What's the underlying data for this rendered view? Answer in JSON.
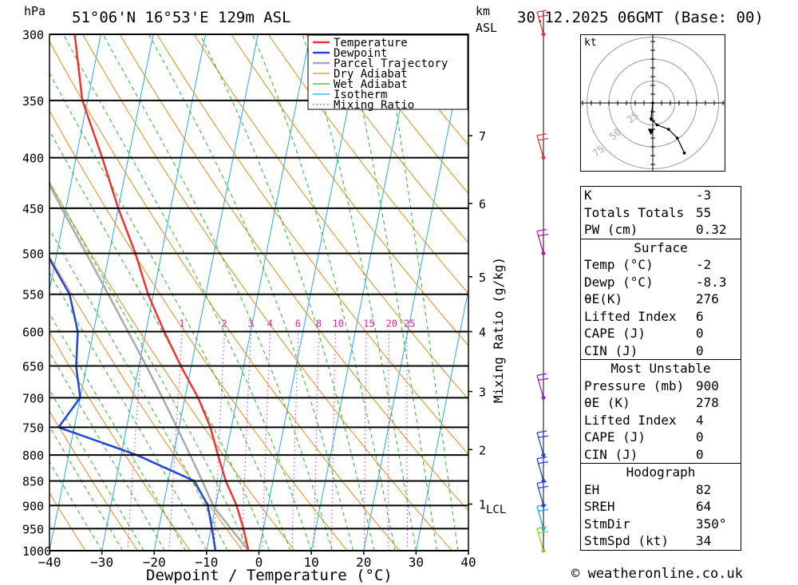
{
  "header": {
    "hpa_label": "hPa",
    "location": "51°06'N  16°53'E  129m  ASL",
    "km_label": "km",
    "asl_label": "ASL",
    "datetime": "30.12.2025  06GMT  (Base: 00)"
  },
  "chart_data": {
    "type": "skew-t log-p sounding",
    "xlabel": "Dewpoint / Temperature (°C)",
    "ylabel": "hPa",
    "x_ticks": [
      -40,
      -30,
      -20,
      -10,
      0,
      10,
      20,
      30,
      40
    ],
    "pressure_levels": [
      300,
      350,
      400,
      450,
      500,
      550,
      600,
      650,
      700,
      750,
      800,
      850,
      900,
      950,
      1000
    ],
    "km_ticks": [
      {
        "label": "7",
        "pressure": 380
      },
      {
        "label": "6",
        "pressure": 445
      },
      {
        "label": "5",
        "pressure": 528
      },
      {
        "label": "4",
        "pressure": 600
      },
      {
        "label": "3",
        "pressure": 690
      },
      {
        "label": "2",
        "pressure": 790
      },
      {
        "label": "1",
        "pressure": 897
      }
    ],
    "lcl": {
      "label": "LCL",
      "pressure": 903
    },
    "mixing_ratio_title": "Mixing Ratio (g/kg)",
    "mixing_ratio_labels": [
      "1",
      "2",
      "3",
      "4",
      "6",
      "8",
      "10",
      "15",
      "20",
      "25"
    ],
    "legend": [
      "Temperature",
      "Dewpoint",
      "Parcel Trajectory",
      "Dry Adiabat",
      "Wet Adiabat",
      "Isotherm",
      "Mixing Ratio"
    ],
    "colors": {
      "temperature": "#ee3333",
      "dewpoint": "#2244dd",
      "parcel": "#aaaaaa",
      "dry_adiabat": "#e88a17",
      "wet_adiabat": "#22bb22",
      "isotherm": "#22aaee",
      "mixing_ratio": "#dd22aa"
    },
    "temperature_profile": [
      {
        "p": 1000,
        "t": -2
      },
      {
        "p": 950,
        "t": -3.8
      },
      {
        "p": 900,
        "t": -6
      },
      {
        "p": 850,
        "t": -9
      },
      {
        "p": 800,
        "t": -11.5
      },
      {
        "p": 750,
        "t": -14
      },
      {
        "p": 700,
        "t": -17.5
      },
      {
        "p": 650,
        "t": -22
      },
      {
        "p": 600,
        "t": -26.5
      },
      {
        "p": 550,
        "t": -31
      },
      {
        "p": 500,
        "t": -35
      },
      {
        "p": 450,
        "t": -40
      },
      {
        "p": 400,
        "t": -45
      },
      {
        "p": 350,
        "t": -51
      },
      {
        "p": 300,
        "t": -55
      }
    ],
    "dewpoint_profile": [
      {
        "p": 1000,
        "t": -8.3
      },
      {
        "p": 950,
        "t": -9.8
      },
      {
        "p": 900,
        "t": -11.5
      },
      {
        "p": 850,
        "t": -15
      },
      {
        "p": 800,
        "t": -27
      },
      {
        "p": 750,
        "t": -43
      },
      {
        "p": 700,
        "t": -40
      },
      {
        "p": 650,
        "t": -42
      },
      {
        "p": 600,
        "t": -43
      },
      {
        "p": 550,
        "t": -46
      },
      {
        "p": 500,
        "t": -52
      },
      {
        "p": 450,
        "t": -59
      },
      {
        "p": 400,
        "t": -60
      },
      {
        "p": 350,
        "t": -64
      },
      {
        "p": 300,
        "t": -70
      }
    ],
    "parcel_profile": [
      {
        "p": 1000,
        "t": -2
      },
      {
        "p": 950,
        "t": -6.2
      },
      {
        "p": 903,
        "t": -10.3
      },
      {
        "p": 850,
        "t": -13.5
      },
      {
        "p": 800,
        "t": -16.8
      },
      {
        "p": 750,
        "t": -20.4
      },
      {
        "p": 700,
        "t": -24.3
      },
      {
        "p": 650,
        "t": -28.6
      },
      {
        "p": 600,
        "t": -33.4
      },
      {
        "p": 550,
        "t": -38.6
      },
      {
        "p": 500,
        "t": -44.4
      },
      {
        "p": 450,
        "t": -50.8
      },
      {
        "p": 400,
        "t": -57.8
      },
      {
        "p": 350,
        "t": -65.6
      },
      {
        "p": 300,
        "t": -74
      }
    ],
    "wind_profile_colors": [
      {
        "p": 1000,
        "color": "#88cc22"
      },
      {
        "p": 950,
        "color": "#22aaee"
      },
      {
        "p": 900,
        "color": "#2244dd"
      },
      {
        "p": 850,
        "color": "#2244dd"
      },
      {
        "p": 800,
        "color": "#2244dd"
      },
      {
        "p": 700,
        "color": "#9922cc"
      },
      {
        "p": 500,
        "color": "#aa22aa"
      },
      {
        "p": 400,
        "color": "#ee3333"
      },
      {
        "p": 300,
        "color": "#ee3333"
      }
    ],
    "hodograph": {
      "unit_label": "kt",
      "ring_labels": [
        "25",
        "50",
        "75"
      ],
      "trace": [
        [
          0,
          0
        ],
        [
          -2,
          18
        ],
        [
          5,
          25
        ],
        [
          18,
          30
        ],
        [
          28,
          40
        ],
        [
          36,
          57
        ]
      ],
      "storm_motion": [
        -2,
        34
      ]
    }
  },
  "indices": {
    "k_label": "K",
    "k": "-3",
    "tt_label": "Totals Totals",
    "tt": "55",
    "pw_label": "PW (cm)",
    "pw": "0.32",
    "surface": {
      "title": "Surface",
      "temp_label": "Temp (°C)",
      "temp": "-2",
      "dewp_label": "Dewp (°C)",
      "dewp": "-8.3",
      "thetae_label": "θE(K)",
      "thetae": "276",
      "li_label": "Lifted Index",
      "li": "6",
      "cape_label": "CAPE (J)",
      "cape": "0",
      "cin_label": "CIN (J)",
      "cin": "0"
    },
    "most_unstable": {
      "title": "Most Unstable",
      "pressure_label": "Pressure (mb)",
      "pressure": "900",
      "thetae_label": "θE (K)",
      "thetae": "278",
      "li_label": "Lifted Index",
      "li": "4",
      "cape_label": "CAPE (J)",
      "cape": "0",
      "cin_label": "CIN (J)",
      "cin": "0"
    },
    "hodograph": {
      "title": "Hodograph",
      "eh_label": "EH",
      "eh": "82",
      "sreh_label": "SREH",
      "sreh": "64",
      "stmdir_label": "StmDir",
      "stmdir": "350°",
      "stmspd_label": "StmSpd (kt)",
      "stmspd": "34"
    }
  },
  "footer": {
    "copyright": "© weatheronline.co.uk"
  }
}
